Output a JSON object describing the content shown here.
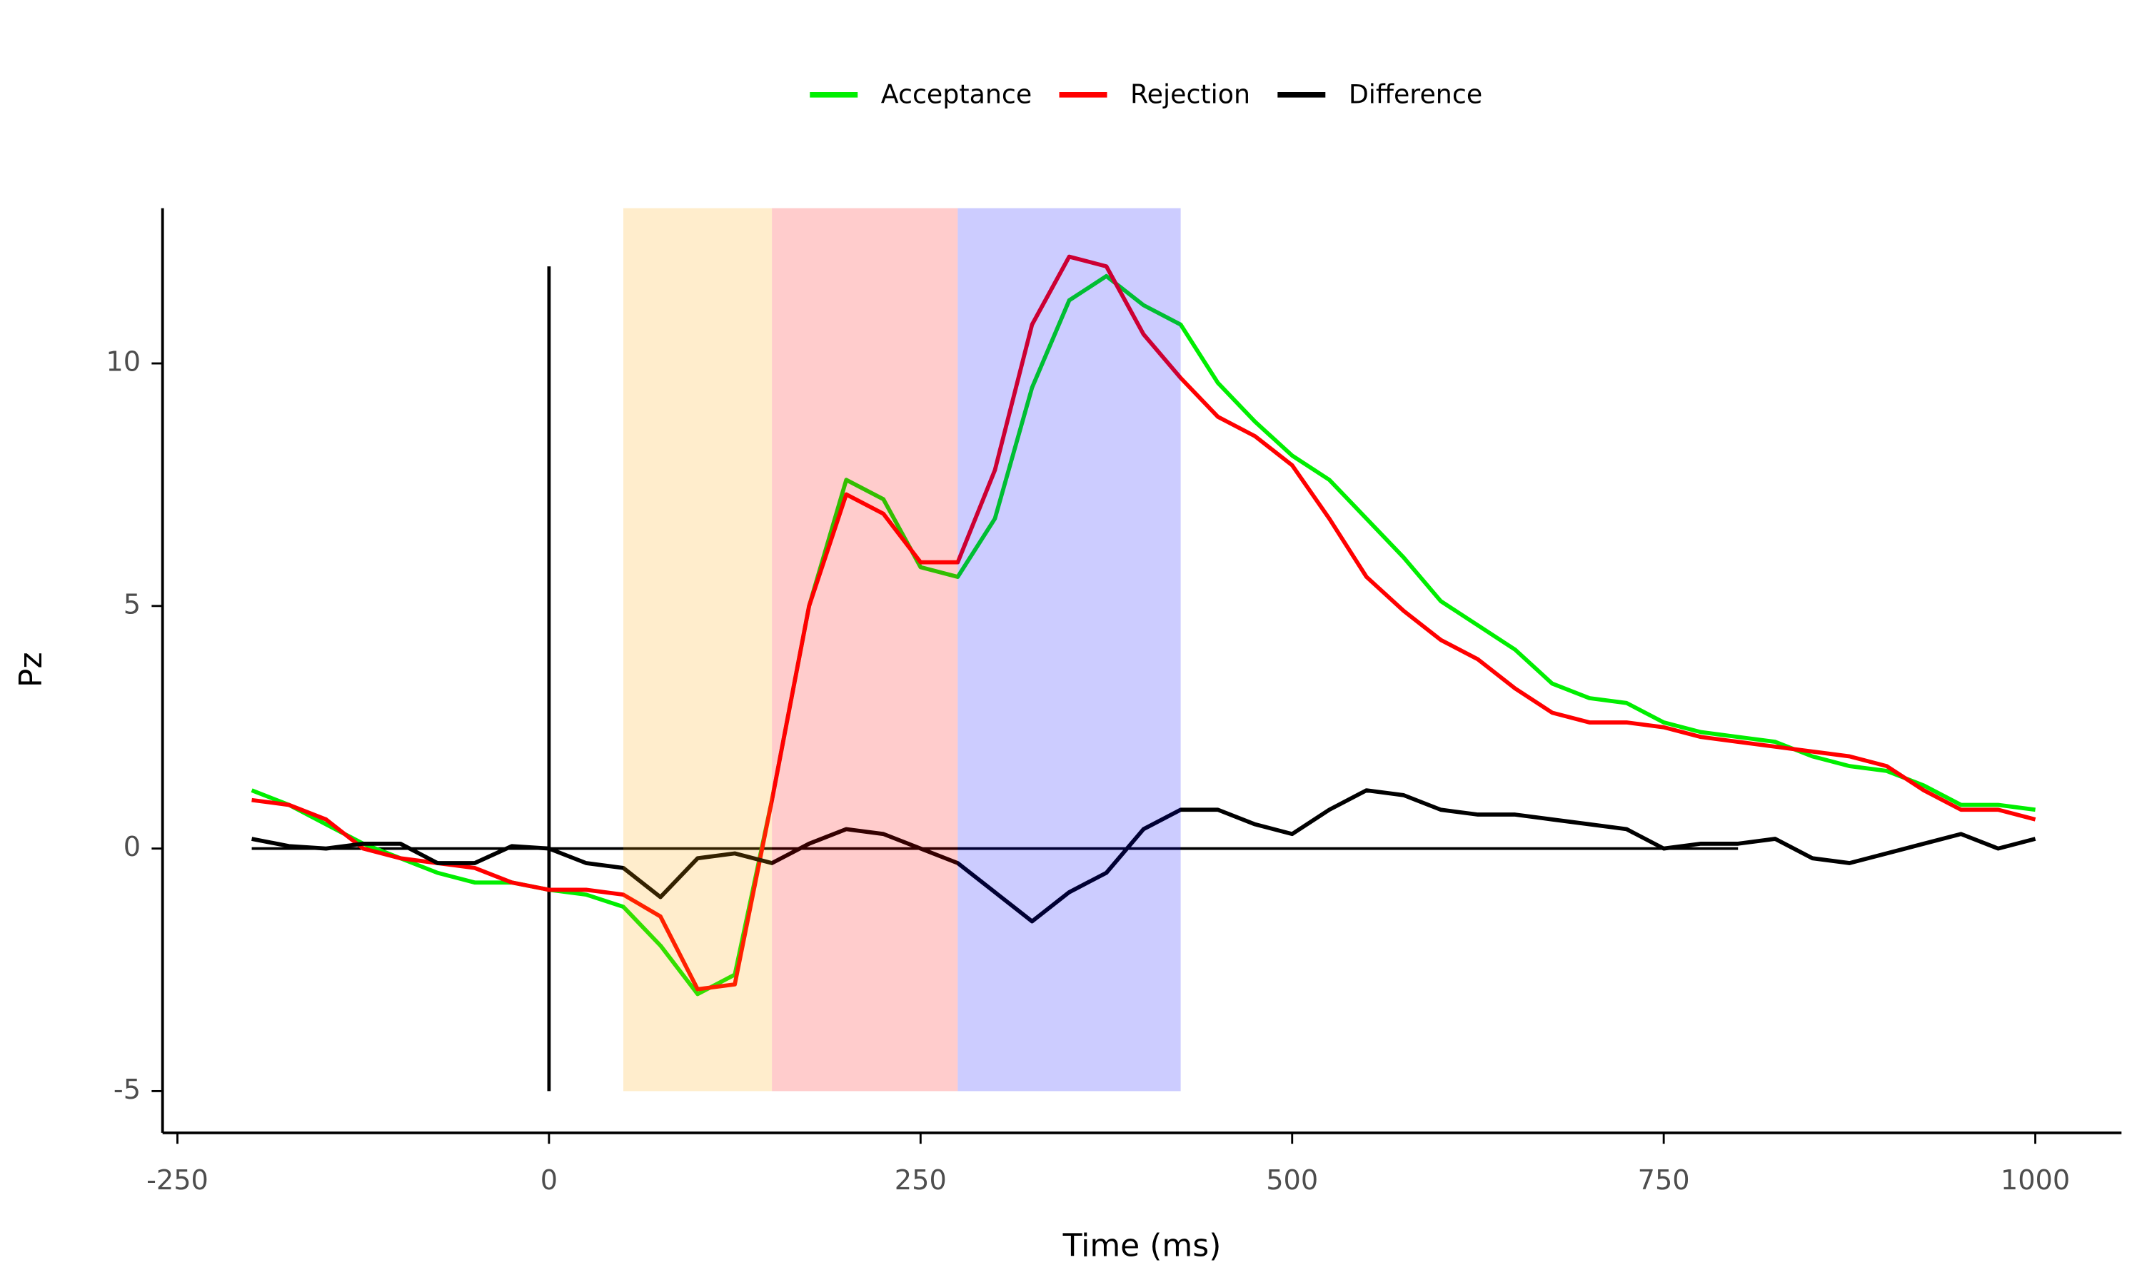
{
  "chart_data": {
    "type": "line",
    "xlabel": "Time (ms)",
    "ylabel": "Pz",
    "x": [
      -200,
      -175,
      -150,
      -125,
      -100,
      -75,
      -50,
      -25,
      0,
      25,
      50,
      75,
      100,
      125,
      150,
      175,
      200,
      225,
      250,
      275,
      300,
      325,
      350,
      375,
      400,
      425,
      450,
      475,
      500,
      525,
      550,
      575,
      600,
      625,
      650,
      675,
      700,
      725,
      750,
      775,
      800,
      825,
      850,
      875,
      900,
      925,
      950,
      975,
      1000
    ],
    "series": [
      {
        "name": "Acceptance",
        "color": "#00ee00",
        "values": [
          1.2,
          0.9,
          0.5,
          0.1,
          -0.2,
          -0.5,
          -0.7,
          -0.7,
          -0.85,
          -0.95,
          -1.2,
          -2.0,
          -3.0,
          -2.6,
          1.0,
          5.0,
          7.6,
          7.2,
          5.8,
          5.6,
          6.8,
          9.5,
          11.3,
          11.8,
          11.2,
          10.8,
          9.6,
          8.8,
          8.1,
          7.6,
          6.8,
          6.0,
          5.1,
          4.6,
          4.1,
          3.4,
          3.1,
          3.0,
          2.6,
          2.4,
          2.3,
          2.2,
          1.9,
          1.7,
          1.6,
          1.3,
          0.9,
          0.9,
          0.8
        ]
      },
      {
        "name": "Rejection",
        "color": "#ff0000",
        "values": [
          1.0,
          0.9,
          0.6,
          0.0,
          -0.2,
          -0.3,
          -0.4,
          -0.7,
          -0.85,
          -0.85,
          -0.95,
          -1.4,
          -2.9,
          -2.8,
          1.0,
          5.0,
          7.3,
          6.9,
          5.9,
          5.9,
          7.8,
          10.8,
          12.2,
          12.0,
          10.6,
          9.7,
          8.9,
          8.5,
          7.9,
          6.8,
          5.6,
          4.9,
          4.3,
          3.9,
          3.3,
          2.8,
          2.6,
          2.6,
          2.5,
          2.3,
          2.2,
          2.1,
          2.0,
          1.9,
          1.7,
          1.2,
          0.8,
          0.8,
          0.6
        ]
      },
      {
        "name": "Difference",
        "color": "#000000",
        "values": [
          0.2,
          0.05,
          0,
          0.1,
          0.1,
          -0.3,
          -0.3,
          0.05,
          0,
          -0.3,
          -0.4,
          -1.0,
          -0.2,
          -0.1,
          -0.3,
          0.1,
          0.4,
          0.3,
          0.0,
          -0.3,
          -0.9,
          -1.5,
          -0.9,
          -0.5,
          0.4,
          0.8,
          0.8,
          0.5,
          0.3,
          0.8,
          1.2,
          1.1,
          0.8,
          0.7,
          0.7,
          0.6,
          0.5,
          0.4,
          0.0,
          0.1,
          0.1,
          0.2,
          -0.2,
          -0.3,
          -0.1,
          0.1,
          0.3,
          0.0,
          0.2
        ]
      }
    ],
    "spans": [
      {
        "start": 50,
        "end": 150,
        "color": "#ffa500"
      },
      {
        "start": 150,
        "end": 275,
        "color": "#ff0000"
      },
      {
        "start": 275,
        "end": 425,
        "color": "#0000ff"
      }
    ],
    "vline": {
      "x": 0,
      "ymin": -5,
      "ymax": 12
    },
    "hline": {
      "y": 0,
      "xmin": -200,
      "xmax": 800
    },
    "xlim": [
      -260,
      1058
    ],
    "ylim": [
      -5.86,
      13.2
    ],
    "xticks": [
      -250,
      0,
      250,
      500,
      750,
      1000
    ],
    "yticks": [
      -5,
      0,
      5,
      10
    ],
    "legend": "top"
  }
}
